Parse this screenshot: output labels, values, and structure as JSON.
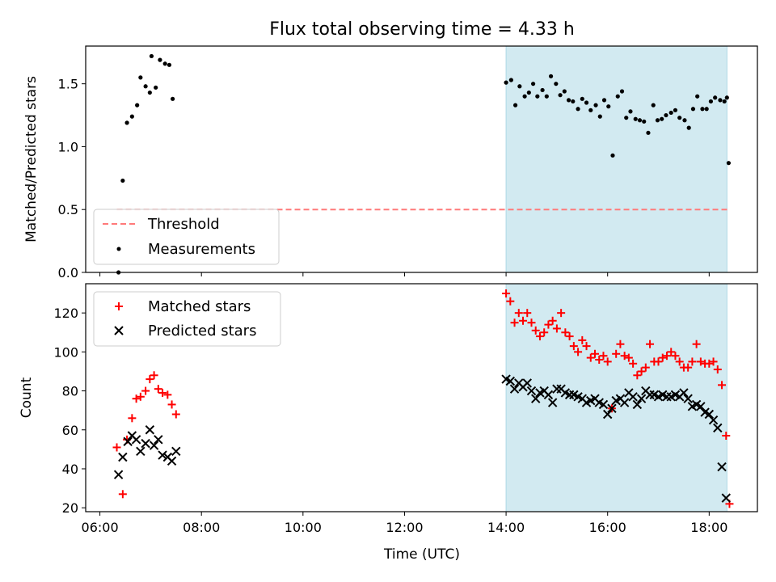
{
  "figure": {
    "title": "Flux total observing time = 4.33 h",
    "xlabel": "Time (UTC)",
    "xticks": [
      "06:00",
      "08:00",
      "10:00",
      "12:00",
      "14:00",
      "16:00",
      "18:00"
    ]
  },
  "chart_data": [
    {
      "type": "scatter",
      "panel": "top",
      "ylabel": "Matched/Predicted stars",
      "xlabel": "Time (UTC)",
      "x_range": [
        "06:00",
        "19:00"
      ],
      "ylim": [
        0,
        1.8
      ],
      "yticks": [
        "0.0",
        "0.5",
        "1.0",
        "1.5"
      ],
      "grid": false,
      "legend_position": "lower-left",
      "shaded_interval": {
        "start": "14:00",
        "end": "18:21",
        "color": "#add8e6"
      },
      "threshold": {
        "name": "Threshold",
        "value": 0.5,
        "start": "06:20",
        "end": "18:22",
        "color": "#ff7a7a"
      },
      "series": [
        {
          "name": "Measurements",
          "color": "#000000",
          "points": [
            [
              "06:22",
              0.0
            ],
            [
              "06:27",
              0.73
            ],
            [
              "06:32",
              1.19
            ],
            [
              "06:38",
              1.24
            ],
            [
              "06:44",
              1.33
            ],
            [
              "06:48",
              1.55
            ],
            [
              "06:54",
              1.48
            ],
            [
              "06:59",
              1.43
            ],
            [
              "07:01",
              1.72
            ],
            [
              "07:06",
              1.47
            ],
            [
              "07:11",
              1.69
            ],
            [
              "07:17",
              1.66
            ],
            [
              "07:22",
              1.65
            ],
            [
              "07:26",
              1.38
            ],
            [
              "14:00",
              1.51
            ],
            [
              "14:06",
              1.53
            ],
            [
              "14:11",
              1.33
            ],
            [
              "14:16",
              1.48
            ],
            [
              "14:22",
              1.4
            ],
            [
              "14:27",
              1.43
            ],
            [
              "14:32",
              1.5
            ],
            [
              "14:37",
              1.4
            ],
            [
              "14:43",
              1.45
            ],
            [
              "14:48",
              1.4
            ],
            [
              "14:53",
              1.56
            ],
            [
              "14:59",
              1.5
            ],
            [
              "15:04",
              1.41
            ],
            [
              "15:09",
              1.44
            ],
            [
              "15:14",
              1.37
            ],
            [
              "15:19",
              1.36
            ],
            [
              "15:25",
              1.3
            ],
            [
              "15:30",
              1.38
            ],
            [
              "15:35",
              1.35
            ],
            [
              "15:40",
              1.29
            ],
            [
              "15:46",
              1.33
            ],
            [
              "15:51",
              1.24
            ],
            [
              "15:56",
              1.37
            ],
            [
              "16:01",
              1.32
            ],
            [
              "16:06",
              0.93
            ],
            [
              "16:12",
              1.4
            ],
            [
              "16:17",
              1.44
            ],
            [
              "16:22",
              1.23
            ],
            [
              "16:27",
              1.28
            ],
            [
              "16:33",
              1.22
            ],
            [
              "16:38",
              1.21
            ],
            [
              "16:43",
              1.2
            ],
            [
              "16:48",
              1.11
            ],
            [
              "16:54",
              1.33
            ],
            [
              "16:59",
              1.21
            ],
            [
              "17:04",
              1.22
            ],
            [
              "17:09",
              1.25
            ],
            [
              "17:15",
              1.27
            ],
            [
              "17:20",
              1.29
            ],
            [
              "17:25",
              1.23
            ],
            [
              "17:31",
              1.21
            ],
            [
              "17:36",
              1.15
            ],
            [
              "17:41",
              1.3
            ],
            [
              "17:46",
              1.4
            ],
            [
              "17:52",
              1.3
            ],
            [
              "17:57",
              1.3
            ],
            [
              "18:02",
              1.36
            ],
            [
              "18:07",
              1.39
            ],
            [
              "18:13",
              1.37
            ],
            [
              "18:18",
              1.36
            ],
            [
              "18:21",
              1.39
            ],
            [
              "18:23",
              0.87
            ]
          ]
        }
      ]
    },
    {
      "type": "scatter",
      "panel": "bottom",
      "ylabel": "Count",
      "xlabel": "Time (UTC)",
      "x_range": [
        "06:00",
        "19:00"
      ],
      "ylim": [
        18,
        135
      ],
      "yticks": [
        "20",
        "40",
        "60",
        "80",
        "100",
        "120"
      ],
      "grid": false,
      "legend_position": "upper-left",
      "shaded_interval": {
        "start": "14:00",
        "end": "18:21",
        "color": "#add8e6"
      },
      "series": [
        {
          "name": "Matched stars",
          "marker": "plus",
          "color": "#ff0000",
          "points": [
            [
              "06:20",
              51
            ],
            [
              "06:27",
              27
            ],
            [
              "06:32",
              55
            ],
            [
              "06:38",
              66
            ],
            [
              "06:43",
              76
            ],
            [
              "06:48",
              77
            ],
            [
              "06:54",
              80
            ],
            [
              "06:59",
              86
            ],
            [
              "07:04",
              88
            ],
            [
              "07:09",
              81
            ],
            [
              "07:14",
              79
            ],
            [
              "07:20",
              78
            ],
            [
              "07:25",
              73
            ],
            [
              "07:30",
              68
            ],
            [
              "14:00",
              130
            ],
            [
              "14:05",
              126
            ],
            [
              "14:10",
              115
            ],
            [
              "14:15",
              120
            ],
            [
              "14:20",
              116
            ],
            [
              "14:25",
              120
            ],
            [
              "14:30",
              115
            ],
            [
              "14:35",
              111
            ],
            [
              "14:40",
              108
            ],
            [
              "14:45",
              110
            ],
            [
              "14:50",
              114
            ],
            [
              "14:55",
              116
            ],
            [
              "15:00",
              112
            ],
            [
              "15:05",
              120
            ],
            [
              "15:10",
              110
            ],
            [
              "15:15",
              108
            ],
            [
              "15:20",
              103
            ],
            [
              "15:25",
              100
            ],
            [
              "15:30",
              106
            ],
            [
              "15:35",
              103
            ],
            [
              "15:40",
              97
            ],
            [
              "15:45",
              99
            ],
            [
              "15:50",
              96
            ],
            [
              "15:55",
              98
            ],
            [
              "16:00",
              95
            ],
            [
              "16:05",
              71
            ],
            [
              "16:10",
              99
            ],
            [
              "16:15",
              104
            ],
            [
              "16:20",
              98
            ],
            [
              "16:25",
              97
            ],
            [
              "16:30",
              94
            ],
            [
              "16:35",
              88
            ],
            [
              "16:40",
              90
            ],
            [
              "16:45",
              92
            ],
            [
              "16:50",
              104
            ],
            [
              "16:55",
              95
            ],
            [
              "17:00",
              95
            ],
            [
              "17:05",
              97
            ],
            [
              "17:10",
              98
            ],
            [
              "17:15",
              100
            ],
            [
              "17:20",
              98
            ],
            [
              "17:25",
              95
            ],
            [
              "17:30",
              92
            ],
            [
              "17:35",
              92
            ],
            [
              "17:40",
              95
            ],
            [
              "17:45",
              104
            ],
            [
              "17:50",
              95
            ],
            [
              "17:55",
              94
            ],
            [
              "18:00",
              94
            ],
            [
              "18:05",
              95
            ],
            [
              "18:10",
              91
            ],
            [
              "18:15",
              83
            ],
            [
              "18:20",
              57
            ],
            [
              "18:24",
              22
            ]
          ]
        },
        {
          "name": "Predicted stars",
          "marker": "x",
          "color": "#000000",
          "points": [
            [
              "06:22",
              37
            ],
            [
              "06:27",
              46
            ],
            [
              "06:33",
              54
            ],
            [
              "06:38",
              57
            ],
            [
              "06:43",
              55
            ],
            [
              "06:48",
              49
            ],
            [
              "06:54",
              53
            ],
            [
              "06:59",
              60
            ],
            [
              "07:04",
              52
            ],
            [
              "07:09",
              55
            ],
            [
              "07:14",
              47
            ],
            [
              "07:20",
              46
            ],
            [
              "07:25",
              44
            ],
            [
              "07:30",
              49
            ],
            [
              "14:00",
              86
            ],
            [
              "14:05",
              85
            ],
            [
              "14:10",
              81
            ],
            [
              "14:15",
              84
            ],
            [
              "14:20",
              82
            ],
            [
              "14:25",
              84
            ],
            [
              "14:30",
              80
            ],
            [
              "14:35",
              76
            ],
            [
              "14:40",
              79
            ],
            [
              "14:45",
              80
            ],
            [
              "14:50",
              78
            ],
            [
              "14:55",
              74
            ],
            [
              "15:00",
              81
            ],
            [
              "15:05",
              81
            ],
            [
              "15:10",
              79
            ],
            [
              "15:15",
              78
            ],
            [
              "15:20",
              78
            ],
            [
              "15:25",
              77
            ],
            [
              "15:30",
              76
            ],
            [
              "15:35",
              74
            ],
            [
              "15:40",
              75
            ],
            [
              "15:45",
              76
            ],
            [
              "15:50",
              74
            ],
            [
              "15:55",
              73
            ],
            [
              "16:00",
              68
            ],
            [
              "16:05",
              71
            ],
            [
              "16:10",
              75
            ],
            [
              "16:15",
              76
            ],
            [
              "16:20",
              74
            ],
            [
              "16:25",
              79
            ],
            [
              "16:30",
              77
            ],
            [
              "16:35",
              73
            ],
            [
              "16:40",
              76
            ],
            [
              "16:45",
              80
            ],
            [
              "16:50",
              78
            ],
            [
              "16:55",
              78
            ],
            [
              "17:00",
              77
            ],
            [
              "17:05",
              78
            ],
            [
              "17:10",
              77
            ],
            [
              "17:15",
              77
            ],
            [
              "17:20",
              78
            ],
            [
              "17:25",
              77
            ],
            [
              "17:30",
              79
            ],
            [
              "17:35",
              76
            ],
            [
              "17:40",
              72
            ],
            [
              "17:45",
              73
            ],
            [
              "17:50",
              72
            ],
            [
              "17:55",
              69
            ],
            [
              "18:00",
              68
            ],
            [
              "18:05",
              65
            ],
            [
              "18:10",
              61
            ],
            [
              "18:15",
              41
            ],
            [
              "18:20",
              25
            ]
          ]
        }
      ]
    }
  ]
}
